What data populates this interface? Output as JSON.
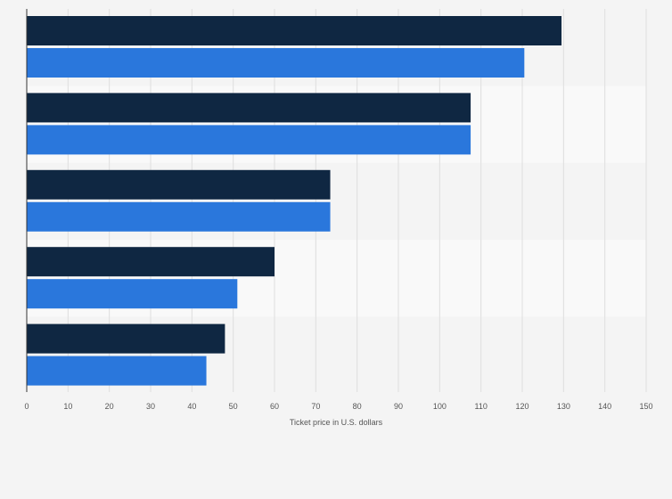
{
  "chart_data": {
    "type": "bar",
    "orientation": "horizontal",
    "title": "",
    "xlabel": "Ticket price in U.S. dollars",
    "ylabel": "",
    "xlim": [
      0,
      150
    ],
    "xticks": [
      0,
      10,
      20,
      30,
      40,
      50,
      60,
      70,
      80,
      90,
      100,
      110,
      120,
      130,
      140,
      150
    ],
    "grid": true,
    "legend": "none",
    "categories": [
      "",
      "",
      "",
      "",
      ""
    ],
    "series": [
      {
        "color": "#0f2742",
        "values": [
          129.5,
          107.5,
          73.5,
          60,
          48
        ]
      },
      {
        "color": "#2a77dc",
        "values": [
          120.5,
          107.5,
          73.5,
          51,
          43.5
        ]
      }
    ]
  },
  "colors": {
    "background": "#f4f4f4",
    "band_alt": "#f9f9f9",
    "grid": "#dedede",
    "axis": "#333333",
    "text": "#555555"
  }
}
